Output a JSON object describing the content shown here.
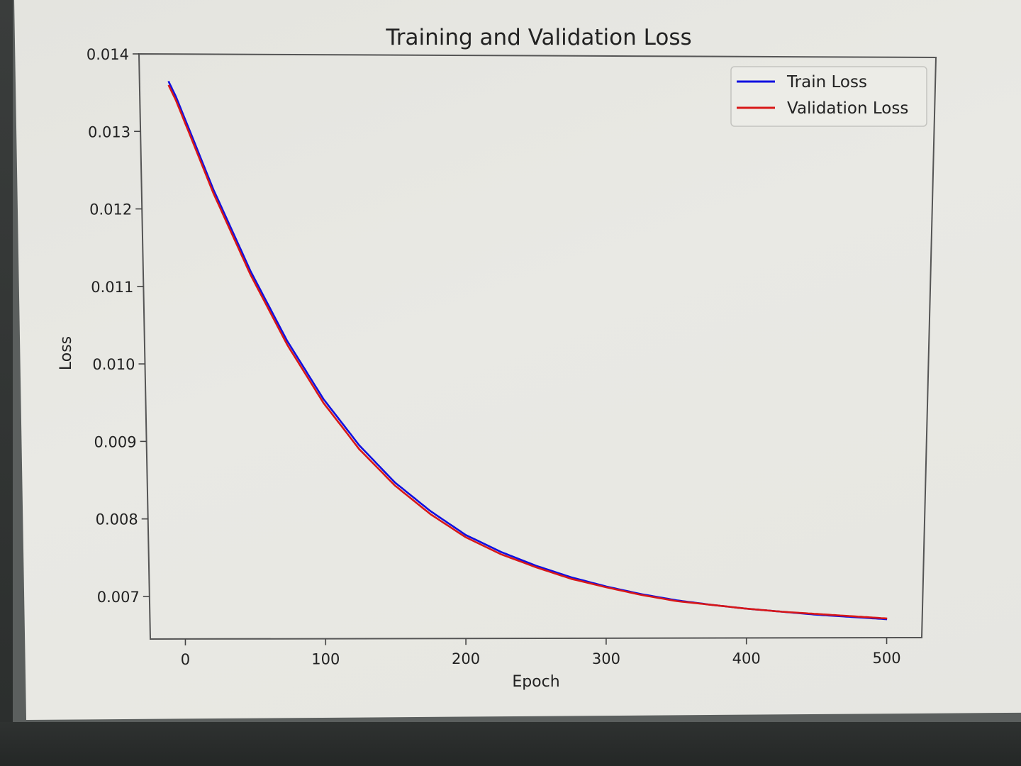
{
  "chart_data": {
    "type": "line",
    "title": "Training and Validation Loss",
    "xlabel": "Epoch",
    "ylabel": "Loss",
    "xlim": [
      -25,
      525
    ],
    "ylim": [
      0.00645,
      0.014
    ],
    "xticks": [
      0,
      100,
      200,
      300,
      400,
      500
    ],
    "xtick_labels": [
      "0",
      "100",
      "200",
      "300",
      "400",
      "500"
    ],
    "yticks": [
      0.007,
      0.008,
      0.009,
      0.01,
      0.011,
      0.012,
      0.013,
      0.014
    ],
    "ytick_labels": [
      "0.007",
      "0.008",
      "0.009",
      "0.010",
      "0.011",
      "0.012",
      "0.013",
      "0.014"
    ],
    "grid": false,
    "legend_position": "top-right",
    "series": [
      {
        "name": "Train Loss",
        "color": "#1010e0",
        "x": [
          -5,
          0,
          25,
          50,
          75,
          100,
          125,
          150,
          175,
          200,
          225,
          250,
          275,
          300,
          325,
          350,
          375,
          400,
          425,
          450,
          475,
          500
        ],
        "y": [
          0.01365,
          0.01345,
          0.01225,
          0.0112,
          0.0103,
          0.00955,
          0.00895,
          0.00847,
          0.0081,
          0.00779,
          0.00757,
          0.00739,
          0.00724,
          0.00712,
          0.00702,
          0.00694,
          0.00688,
          0.00683,
          0.00679,
          0.00675,
          0.00672,
          0.00669
        ]
      },
      {
        "name": "Validation Loss",
        "color": "#d81818",
        "x": [
          -5,
          0,
          25,
          50,
          75,
          100,
          125,
          150,
          175,
          200,
          225,
          250,
          275,
          300,
          325,
          350,
          375,
          400,
          425,
          450,
          475,
          500
        ],
        "y": [
          0.0136,
          0.0134,
          0.0122,
          0.01115,
          0.01025,
          0.0095,
          0.0089,
          0.00843,
          0.00806,
          0.00776,
          0.00754,
          0.00737,
          0.00722,
          0.00711,
          0.00701,
          0.00693,
          0.00688,
          0.00683,
          0.00679,
          0.00676,
          0.00673,
          0.0067
        ]
      }
    ]
  }
}
